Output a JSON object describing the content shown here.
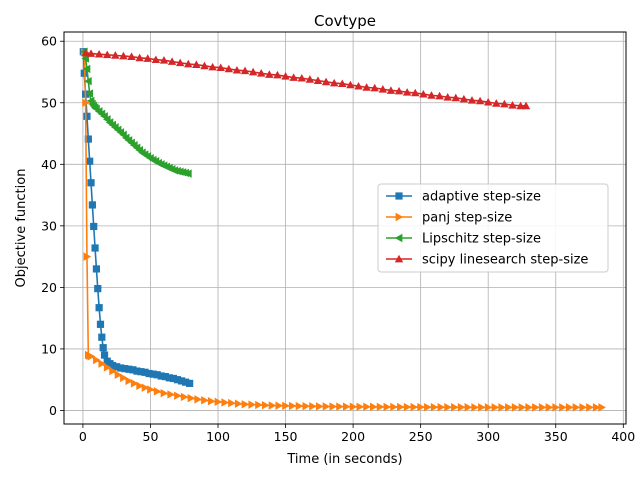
{
  "chart_data": {
    "type": "line",
    "title": "Covtype",
    "xlabel": "Time (in seconds)",
    "ylabel": "Objective function",
    "xlim": [
      -14,
      402
    ],
    "ylim": [
      -2.2,
      61.5
    ],
    "xticks": [
      0,
      50,
      100,
      150,
      200,
      250,
      300,
      350,
      400
    ],
    "yticks": [
      0,
      10,
      20,
      30,
      40,
      50,
      60
    ],
    "grid": true,
    "legend_position": "center-right",
    "series": [
      {
        "name": "adaptive step-size",
        "color": "#1f77b4",
        "marker": "square",
        "x": [
          0.3,
          1,
          2,
          3,
          4,
          5,
          6,
          7,
          8,
          9,
          10,
          11,
          12,
          13,
          14,
          15,
          16,
          18,
          20,
          22,
          25,
          28,
          31,
          34,
          37,
          40,
          43,
          46,
          49,
          52,
          55,
          58,
          61,
          64,
          67,
          70,
          73,
          76,
          79
        ],
        "y": [
          58.3,
          54.8,
          51.4,
          47.8,
          44.1,
          40.5,
          37.0,
          33.4,
          29.9,
          26.4,
          23.0,
          19.8,
          16.7,
          14.0,
          11.9,
          10.2,
          9.0,
          8.0,
          7.6,
          7.3,
          7.1,
          6.9,
          6.8,
          6.7,
          6.6,
          6.4,
          6.3,
          6.2,
          6.0,
          5.9,
          5.8,
          5.6,
          5.5,
          5.3,
          5.2,
          5.0,
          4.8,
          4.6,
          4.4
        ]
      },
      {
        "name": "panj step-size",
        "color": "#ff7f0e",
        "marker": "triangle-right",
        "x": [
          1,
          2,
          3,
          4,
          5,
          6,
          10,
          14,
          18,
          22,
          26,
          30,
          34,
          38,
          42,
          46,
          50,
          55,
          60,
          65,
          70,
          75,
          80,
          85,
          90,
          95,
          100,
          105,
          110,
          115,
          120,
          125,
          130,
          135,
          140,
          145,
          150,
          155,
          160,
          165,
          170,
          175,
          180,
          185,
          190,
          195,
          200,
          205,
          210,
          215,
          220,
          225,
          230,
          235,
          240,
          245,
          250,
          255,
          260,
          265,
          270,
          275,
          280,
          285,
          290,
          295,
          300,
          305,
          310,
          315,
          320,
          325,
          330,
          335,
          340,
          345,
          350,
          355,
          360,
          365,
          370,
          375,
          380,
          384
        ],
        "y": [
          58.2,
          50.0,
          25.0,
          9.0,
          8.9,
          8.8,
          8.2,
          7.6,
          7.0,
          6.4,
          5.8,
          5.3,
          4.8,
          4.4,
          4.0,
          3.7,
          3.4,
          3.1,
          2.8,
          2.6,
          2.4,
          2.2,
          2.0,
          1.8,
          1.65,
          1.5,
          1.4,
          1.3,
          1.2,
          1.1,
          1.0,
          0.95,
          0.9,
          0.85,
          0.8,
          0.78,
          0.76,
          0.74,
          0.72,
          0.7,
          0.68,
          0.66,
          0.65,
          0.64,
          0.63,
          0.62,
          0.61,
          0.6,
          0.6,
          0.59,
          0.58,
          0.57,
          0.57,
          0.56,
          0.56,
          0.55,
          0.55,
          0.54,
          0.54,
          0.53,
          0.53,
          0.52,
          0.52,
          0.52,
          0.51,
          0.51,
          0.5,
          0.5,
          0.5,
          0.5,
          0.5,
          0.5,
          0.5,
          0.5,
          0.5,
          0.5,
          0.5,
          0.5,
          0.5,
          0.5,
          0.5,
          0.5,
          0.5,
          0.5
        ]
      },
      {
        "name": "Lipschitz step-size",
        "color": "#2ca02c",
        "marker": "triangle-left",
        "x": [
          1,
          2,
          3,
          4,
          5,
          6,
          7,
          8,
          9,
          10,
          12,
          14,
          16,
          18,
          20,
          22,
          24,
          26,
          28,
          30,
          32,
          34,
          36,
          38,
          40,
          42,
          44,
          46,
          48,
          50,
          52,
          54,
          56,
          58,
          60,
          62,
          64,
          66,
          68,
          70,
          72,
          74,
          76,
          78
        ],
        "y": [
          58.3,
          57.2,
          55.5,
          53.5,
          51.5,
          50.3,
          49.8,
          49.5,
          49.2,
          49.0,
          48.6,
          48.2,
          47.8,
          47.3,
          46.8,
          46.4,
          46.0,
          45.6,
          45.2,
          44.8,
          44.3,
          43.9,
          43.5,
          43.1,
          42.7,
          42.3,
          41.9,
          41.6,
          41.3,
          41.0,
          40.7,
          40.5,
          40.2,
          40.0,
          39.8,
          39.6,
          39.4,
          39.2,
          39.0,
          38.9,
          38.8,
          38.7,
          38.6,
          38.5
        ]
      },
      {
        "name": "scipy linesearch step-size",
        "color": "#d62728",
        "marker": "triangle-up",
        "x": [
          2,
          6,
          12,
          18,
          24,
          30,
          36,
          42,
          48,
          54,
          60,
          66,
          72,
          78,
          84,
          90,
          96,
          102,
          108,
          114,
          120,
          126,
          132,
          138,
          144,
          150,
          156,
          162,
          168,
          174,
          180,
          186,
          192,
          198,
          204,
          210,
          216,
          222,
          228,
          234,
          240,
          246,
          252,
          258,
          264,
          270,
          276,
          282,
          288,
          294,
          300,
          306,
          312,
          318,
          324,
          328
        ],
        "y": [
          58.1,
          58.0,
          57.9,
          57.8,
          57.7,
          57.6,
          57.5,
          57.3,
          57.2,
          57.0,
          56.9,
          56.7,
          56.5,
          56.3,
          56.2,
          56.0,
          55.8,
          55.7,
          55.5,
          55.3,
          55.2,
          55.0,
          54.8,
          54.6,
          54.5,
          54.3,
          54.1,
          54.0,
          53.8,
          53.6,
          53.4,
          53.2,
          53.1,
          52.9,
          52.7,
          52.5,
          52.4,
          52.2,
          52.0,
          51.9,
          51.7,
          51.6,
          51.4,
          51.2,
          51.1,
          50.9,
          50.8,
          50.6,
          50.4,
          50.3,
          50.1,
          49.9,
          49.8,
          49.6,
          49.5,
          49.5
        ]
      }
    ]
  }
}
